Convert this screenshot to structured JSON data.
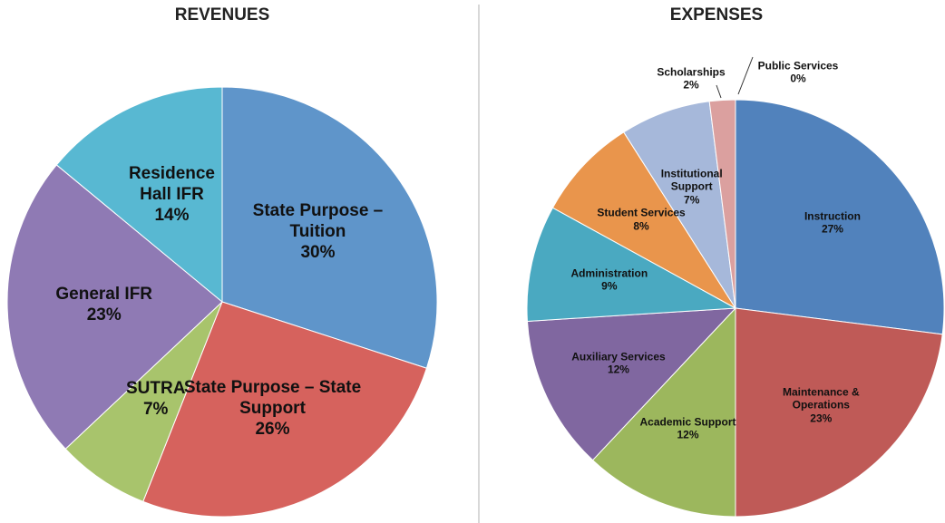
{
  "chart_data": [
    {
      "type": "pie",
      "title": "REVENUES",
      "categories": [
        "State Purpose – Tuition",
        "State Purpose – State Support",
        "SUTRA",
        "General IFR",
        "Residence Hall IFR"
      ],
      "values": [
        30,
        26,
        7,
        23,
        14
      ],
      "value_labels": [
        "30%",
        "26%",
        "7%",
        "23%",
        "14%"
      ],
      "colors": [
        "#5f95ca",
        "#d6625d",
        "#a8c46c",
        "#8f7ab4",
        "#58b8d2"
      ]
    },
    {
      "type": "pie",
      "title": "EXPENSES",
      "categories": [
        "Instruction",
        "Maintenance & Operations",
        "Academic Support",
        "Auxiliary Services",
        "Administration",
        "Student Services",
        "Institutional Support",
        "Scholarships",
        "Public Services"
      ],
      "values": [
        27,
        23,
        12,
        12,
        9,
        8,
        7,
        2,
        0
      ],
      "value_labels": [
        "27%",
        "23%",
        "12%",
        "12%",
        "9%",
        "8%",
        "7%",
        "2%",
        "0%"
      ],
      "colors": [
        "#5182bc",
        "#bf5a57",
        "#9cb75d",
        "#8067a0",
        "#4aa9c1",
        "#e9954c",
        "#a6b8da",
        "#dba09f",
        "#c6d89e"
      ]
    }
  ]
}
